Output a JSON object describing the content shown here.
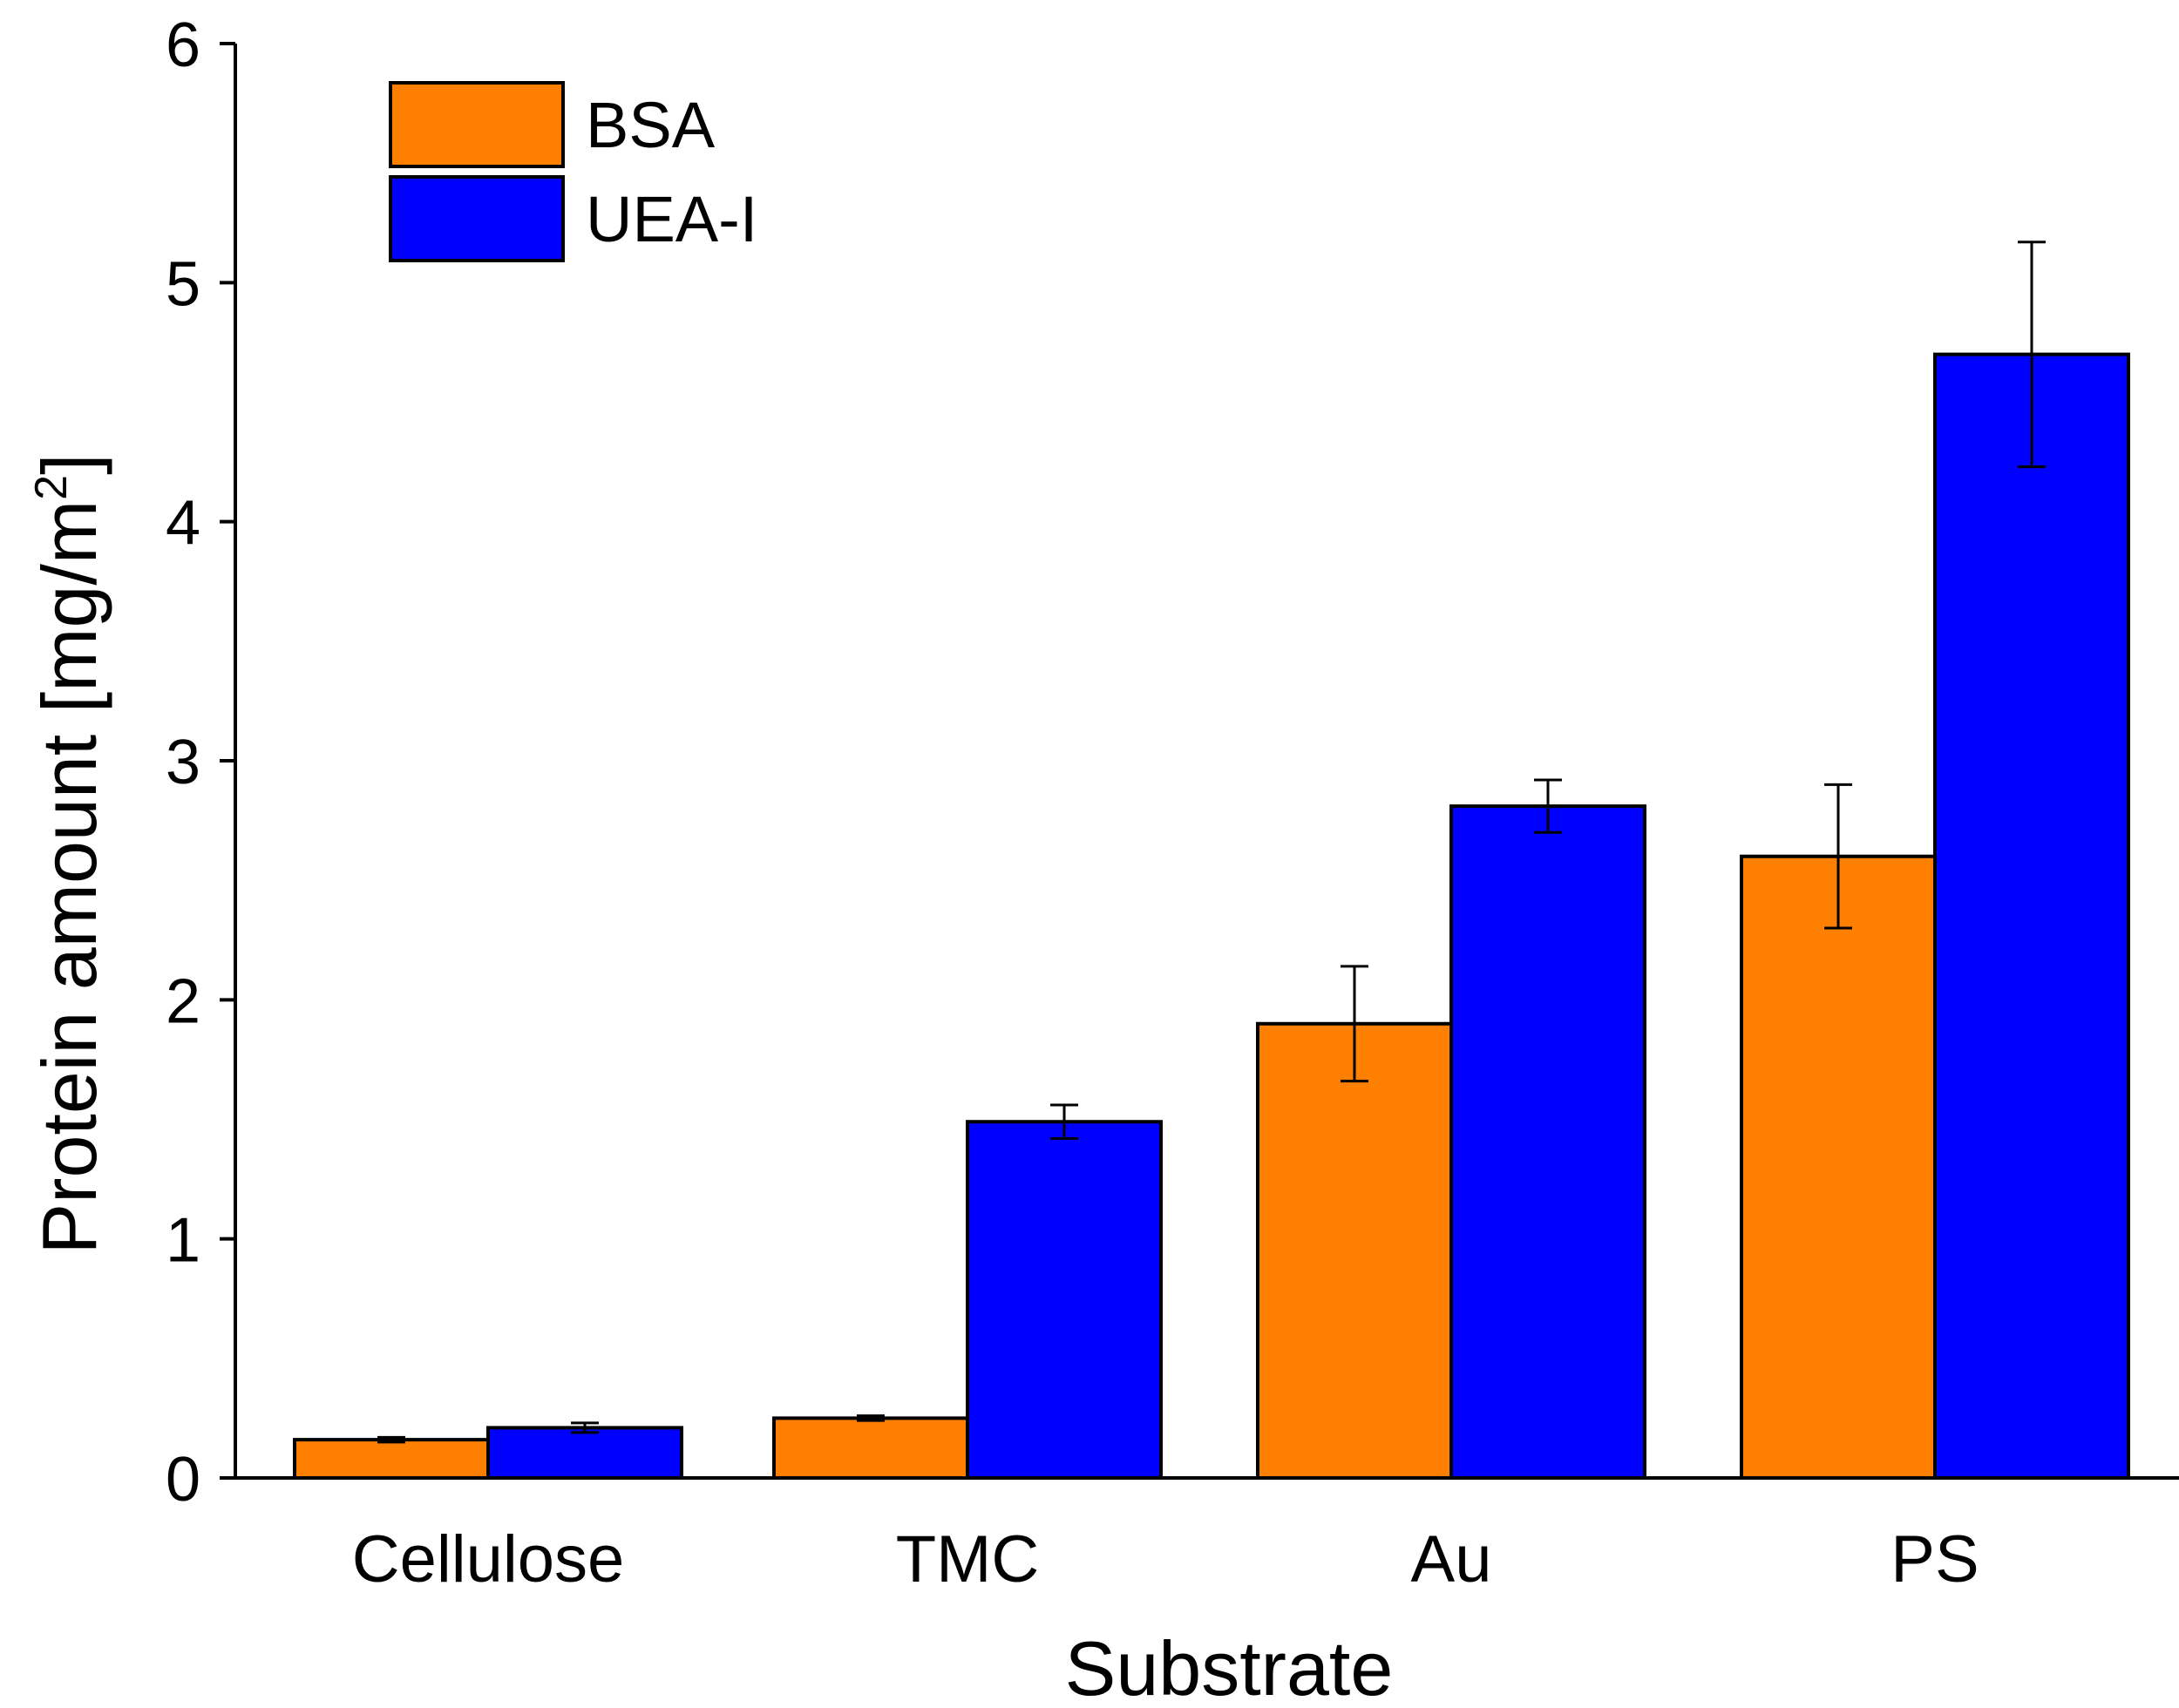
{
  "chart_data": {
    "type": "bar",
    "title": "",
    "xlabel": "Substrate",
    "ylabel": "Protein amount [mg/m",
    "ylabel_superscript": "2",
    "ylabel_suffix": "]",
    "ylim": [
      0,
      6
    ],
    "yticks": [
      0,
      1,
      2,
      3,
      4,
      5,
      6
    ],
    "categories": [
      "Cellulose",
      "TMC",
      "Au",
      "PS"
    ],
    "series": [
      {
        "name": "BSA",
        "color": "#FF8000",
        "values": [
          0.16,
          0.25,
          1.9,
          2.6
        ],
        "errors": [
          0.01,
          0.01,
          0.24,
          0.3
        ]
      },
      {
        "name": "UEA-I",
        "color": "#0000FF",
        "values": [
          0.21,
          1.49,
          2.81,
          4.7
        ],
        "errors": [
          0.02,
          0.07,
          0.11,
          0.47
        ]
      }
    ],
    "legend_position": "top-left",
    "grid": false
  }
}
